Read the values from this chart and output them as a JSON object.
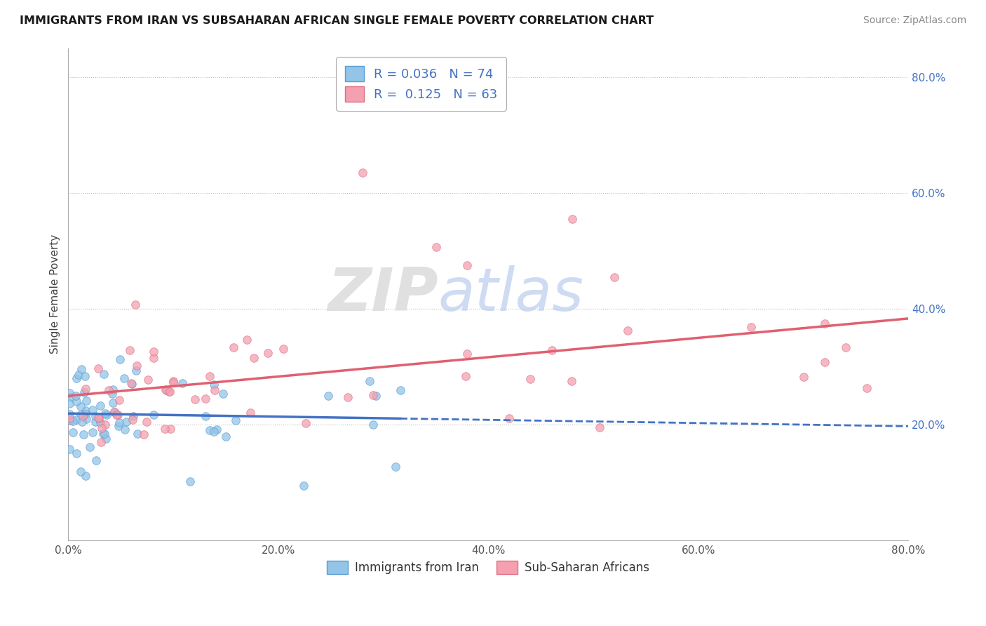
{
  "title": "IMMIGRANTS FROM IRAN VS SUBSAHARAN AFRICAN SINGLE FEMALE POVERTY CORRELATION CHART",
  "source": "Source: ZipAtlas.com",
  "ylabel": "Single Female Poverty",
  "xlim": [
    0.0,
    0.8
  ],
  "ylim": [
    0.0,
    0.85
  ],
  "xtick_labels": [
    "0.0%",
    "20.0%",
    "40.0%",
    "60.0%",
    "80.0%"
  ],
  "xtick_positions": [
    0.0,
    0.2,
    0.4,
    0.6,
    0.8
  ],
  "ytick_labels": [
    "20.0%",
    "40.0%",
    "60.0%",
    "80.0%"
  ],
  "ytick_positions": [
    0.2,
    0.4,
    0.6,
    0.8
  ],
  "legend1_label": "Immigrants from Iran",
  "legend2_label": "Sub-Saharan Africans",
  "iran_color": "#92C5E8",
  "iran_edge_color": "#5B9BD5",
  "africa_color": "#F4A0B0",
  "africa_edge_color": "#E07080",
  "iran_R": "0.036",
  "iran_N": "74",
  "africa_R": "0.125",
  "africa_N": "63",
  "iran_trend_color": "#4472C4",
  "africa_trend_color": "#E06070",
  "watermark_zip": "ZIP",
  "watermark_atlas": "atlas",
  "background_color": "#FFFFFF",
  "grid_color": "#CCCCCC",
  "label_color_blue": "#4472C4",
  "title_color": "#1a1a1a"
}
